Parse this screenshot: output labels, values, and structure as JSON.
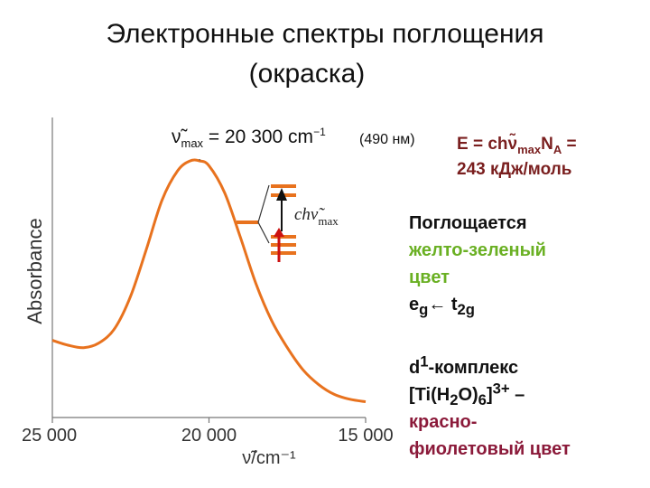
{
  "title": {
    "line1": "Электронные спектры поглощения",
    "line2": "(окраска)"
  },
  "annotation": {
    "numax_prefix": "ν̃",
    "numax_sub": "max",
    "numax_value": " = 20 300 cm",
    "numax_exp": "−1",
    "nm": "(490 нм)",
    "energy_line1_a": "E = chν̃",
    "energy_line1_sub1": "max",
    "energy_line1_b": "N",
    "energy_line1_sub2": "A",
    "energy_line1_c": " =",
    "energy_line2": "243 кДж/моль",
    "transition_label_a": "chν̃",
    "transition_label_sub": "max"
  },
  "side": {
    "absorbs": "Поглощается",
    "color1": "желто-зеленый",
    "color2": "цвет",
    "trans_e": "e",
    "trans_e_sub": "g",
    "trans_arrow": "←",
    "trans_t": " t",
    "trans_t_sub": "2g",
    "complex": "d",
    "complex_sup": "1",
    "complex_rest": "-комплекс",
    "formula_a": "[Ti(H",
    "formula_sub1": "2",
    "formula_b": "O)",
    "formula_sub2": "6",
    "formula_c": "]",
    "formula_sup": "3+",
    "formula_d": " –",
    "red_violet1": "красно-",
    "red_violet2": "фиолетовый цвет"
  },
  "colors": {
    "curve": "#e8721e",
    "energy_text": "#7a1f1f",
    "yellow_green": "#6ab023",
    "red_violet": "#8b1a3a",
    "level_orange": "#e8721e",
    "electron_red": "#cc1111"
  },
  "chart_data": {
    "type": "line",
    "title": "",
    "xlabel": "ν̃/cm⁻¹",
    "ylabel": "Absorbance",
    "x_ticks": [
      "25 000",
      "20 000",
      "15 000"
    ],
    "xlim": [
      25000,
      15000
    ],
    "x_reversed": true,
    "y_ticks_shown": false,
    "grid": false,
    "series": [
      {
        "x": [
          25000,
          24500,
          24000,
          23500,
          23000,
          22500,
          22000,
          21500,
          21000,
          20600,
          20300,
          20000,
          19500,
          19000,
          18500,
          18000,
          17500,
          17000,
          16500,
          16000,
          15500,
          15000
        ],
        "y": [
          0.27,
          0.25,
          0.24,
          0.26,
          0.32,
          0.45,
          0.64,
          0.84,
          0.96,
          1.0,
          1.0,
          0.98,
          0.87,
          0.69,
          0.5,
          0.35,
          0.24,
          0.15,
          0.09,
          0.05,
          0.03,
          0.02
        ]
      }
    ],
    "peak_x": 20300
  }
}
